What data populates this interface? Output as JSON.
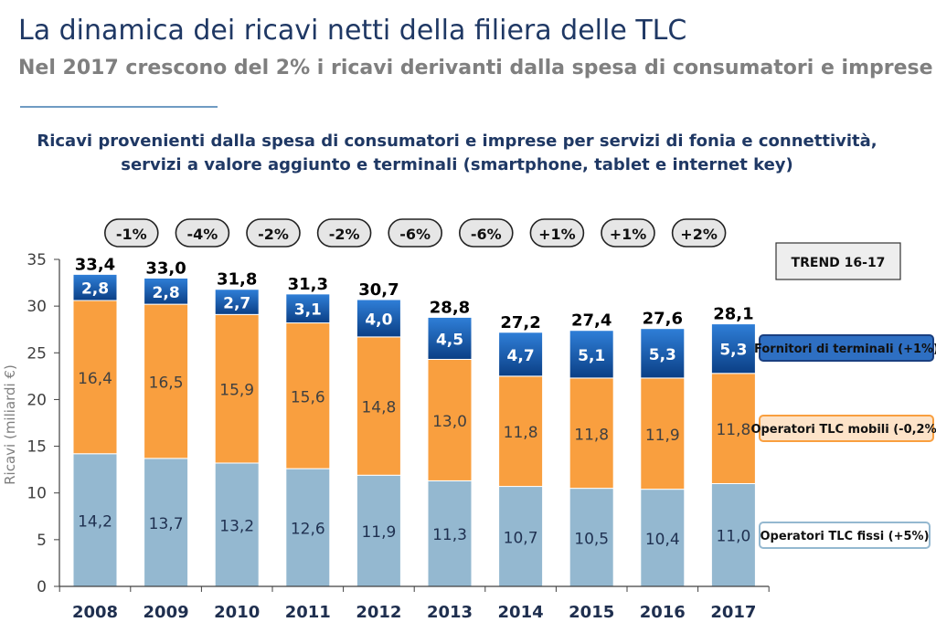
{
  "title": "La dinamica dei ricavi netti della filiera delle TLC",
  "subtitle": "Nel 2017 crescono del 2% i ricavi derivanti dalla spesa di consumatori e imprese",
  "chart_heading": {
    "line1": "Ricavi provenienti dalla spesa di consumatori e imprese per servizi di fonia e connettività,",
    "line2": "servizi a valore aggiunto e terminali (smartphone, tablet e internet key)"
  },
  "trend_label": "TREND 16-17",
  "colors": {
    "fissi": "#94b8d0",
    "mobili": "#f99f3f",
    "terminali": "#0e4d97",
    "axis": "#404040"
  },
  "chart_data": {
    "type": "bar",
    "stacked": true,
    "categories": [
      "2008",
      "2009",
      "2010",
      "2011",
      "2012",
      "2013",
      "2014",
      "2015",
      "2016",
      "2017"
    ],
    "ylabel": "Ricavi (miliardi €)",
    "ylim": [
      0,
      35
    ],
    "yticks": [
      0,
      5,
      10,
      15,
      20,
      25,
      30,
      35
    ],
    "ytick_labels": [
      "0",
      "5",
      "10",
      "15",
      "20",
      "25",
      "30",
      "35"
    ],
    "grid": false,
    "legend": "right",
    "series": [
      {
        "name": "Operatori TLC fissi (+5%)",
        "values": [
          14.2,
          13.7,
          13.2,
          12.6,
          11.9,
          11.3,
          10.7,
          10.5,
          10.4,
          11.0
        ],
        "labels": [
          "14,2",
          "13,7",
          "13,2",
          "12,6",
          "11,9",
          "11,3",
          "10,7",
          "10,5",
          "10,4",
          "11,0"
        ]
      },
      {
        "name": "Operatori TLC mobili (-0,2%)",
        "values": [
          16.4,
          16.5,
          15.9,
          15.6,
          14.8,
          13.0,
          11.8,
          11.8,
          11.9,
          11.8
        ],
        "labels": [
          "16,4",
          "16,5",
          "15,9",
          "15,6",
          "14,8",
          "13,0",
          "11,8",
          "11,8",
          "11,9",
          "11,8"
        ]
      },
      {
        "name": "Fornitori di terminali (+1%)",
        "values": [
          2.8,
          2.8,
          2.7,
          3.1,
          4.0,
          4.5,
          4.7,
          5.1,
          5.3,
          5.3
        ],
        "labels": [
          "2,8",
          "2,8",
          "2,7",
          "3,1",
          "4,0",
          "4,5",
          "4,7",
          "5,1",
          "5,3",
          "5,3"
        ]
      }
    ],
    "totals": [
      33.4,
      33.0,
      31.8,
      31.3,
      30.7,
      28.8,
      27.2,
      27.4,
      27.6,
      28.1
    ],
    "total_labels": [
      "33,4",
      "33,0",
      "31,8",
      "31,3",
      "30,7",
      "28,8",
      "27,2",
      "27,4",
      "27,6",
      "28,1"
    ],
    "growth_labels": [
      "-1%",
      "-4%",
      "-2%",
      "-2%",
      "-6%",
      "-6%",
      "+1%",
      "+1%",
      "+2%"
    ]
  }
}
